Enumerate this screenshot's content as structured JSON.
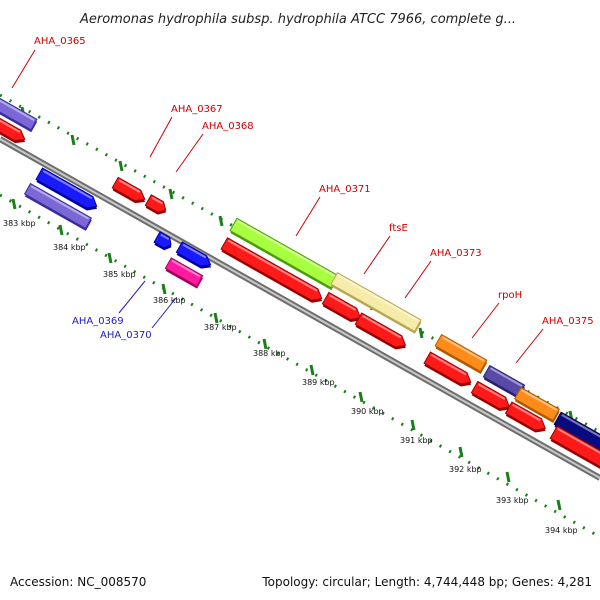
{
  "title": "Aeromonas hydrophila subsp. hydrophila ATCC 7966, complete g...",
  "footer": {
    "accession": "Accession: NC_008570",
    "topology": "Topology: circular; Length: 4,744,448 bp; Genes: 4,281"
  },
  "colors": {
    "backbone": "#8a8a8a",
    "ticks": "#1a7f1a",
    "label_red": "#cc0000",
    "label_blue": "#1c1ccc"
  },
  "scale_labels": [
    "383 kbp",
    "384 kbp",
    "385 kbp",
    "386 kbp",
    "387 kbp",
    "388 kbp",
    "389 kbp",
    "390 kbp",
    "391 kbp",
    "392 kbp",
    "393 kbp",
    "394 kbp"
  ],
  "gene_labels": [
    {
      "name": "AHA_0365",
      "color": "red"
    },
    {
      "name": "AHA_0367",
      "color": "red"
    },
    {
      "name": "AHA_0368",
      "color": "red"
    },
    {
      "name": "AHA_0371",
      "color": "red"
    },
    {
      "name": "ftsE",
      "color": "red"
    },
    {
      "name": "AHA_0373",
      "color": "red"
    },
    {
      "name": "rpoH",
      "color": "red"
    },
    {
      "name": "AHA_0375",
      "color": "red"
    },
    {
      "name": "AHA_0369",
      "color": "blue"
    },
    {
      "name": "AHA_0370",
      "color": "blue"
    }
  ]
}
